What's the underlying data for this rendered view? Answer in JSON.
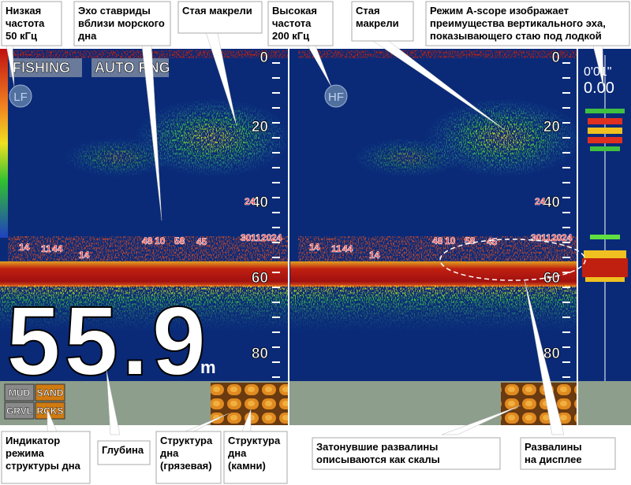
{
  "callouts_top": [
    {
      "lines": [
        "Низкая",
        "частота",
        "50 кГц"
      ]
    },
    {
      "lines": [
        "Эхо ставриды",
        "вблизи морского",
        "дна"
      ]
    },
    {
      "lines": [
        "Стая макрели"
      ]
    },
    {
      "lines": [
        "Высокая",
        "частота",
        "200 кГц"
      ]
    },
    {
      "lines": [
        "Стая",
        "макрели"
      ]
    },
    {
      "lines": [
        "Режим A-scope изображает",
        "преимущества вертикального эха,",
        "показывающего стаю под лодкой"
      ]
    }
  ],
  "callouts_bottom": [
    {
      "lines": [
        "Индикатор",
        "режима",
        "структуры дна"
      ]
    },
    {
      "lines": [
        "Глубина"
      ]
    },
    {
      "lines": [
        "Структура",
        "дна",
        "(грязевая)"
      ]
    },
    {
      "lines": [
        "Структура",
        "дна",
        "(камни)"
      ]
    },
    {
      "lines": [
        "Затонувшие развалины",
        "описываются как скалы"
      ]
    },
    {
      "lines": [
        "Развалины",
        "на дисплее"
      ]
    }
  ],
  "screen": {
    "mode": "FISHING",
    "range": "AUTO RNG",
    "left_freq": "LF",
    "right_freq": "HF",
    "depth_scale_left": [
      "0",
      "20",
      "40",
      "60",
      "80"
    ],
    "depth_scale_right": [
      "0",
      "20",
      "40",
      "60",
      "80"
    ],
    "depth": "55.9",
    "depth_unit": "m",
    "ascope_depth": "0'01\"",
    "ascope_value": "0.00",
    "bottom_types": [
      "MUD",
      "SAND",
      "GRVL",
      "RCKS"
    ],
    "fish_labels_left": [
      "14",
      "11",
      "44",
      "14",
      "48",
      "10",
      "58",
      "45",
      "30",
      "11",
      "20",
      "24",
      "24"
    ],
    "fish_labels_right": [
      "14",
      "11",
      "44",
      "14",
      "48",
      "10",
      "58",
      "45",
      "30",
      "11",
      "20",
      "24",
      "24"
    ]
  }
}
